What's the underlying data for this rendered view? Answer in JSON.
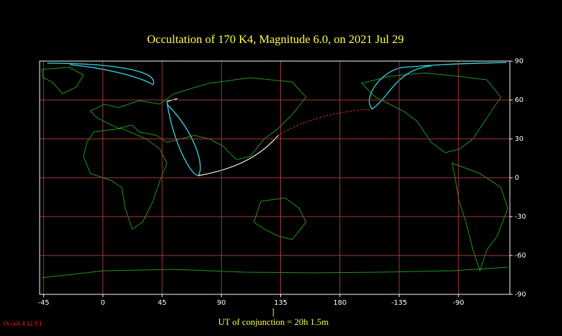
{
  "chart_data": {
    "type": "map",
    "title": "Occultation  of  170 K4,      Magnitude 6.0,   on  2021 Jul 29",
    "footer": "UT of conjunction = 20h  1.5m",
    "version": "Occult 4.12.9.1",
    "xlim": [
      -48,
      309
    ],
    "ylim": [
      -90,
      90
    ],
    "xticks": [
      -45,
      0,
      45,
      90,
      135,
      180,
      {
        "value": 225,
        "label": "-135"
      },
      {
        "value": 270,
        "label": "-90"
      }
    ],
    "yticks": [
      90,
      60,
      30,
      0,
      -30,
      -60,
      -90
    ],
    "grid": true,
    "grid_color": "#a83a3a"
  }
}
